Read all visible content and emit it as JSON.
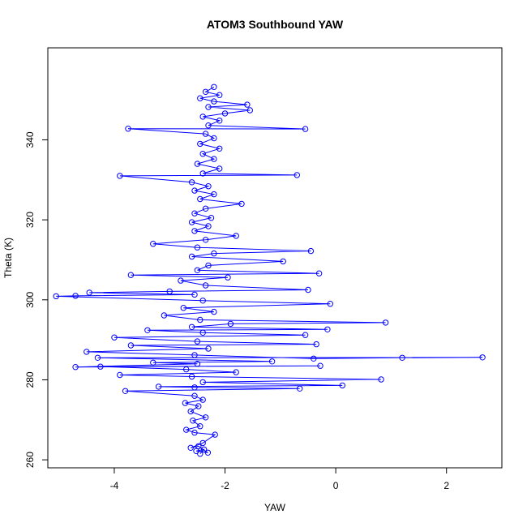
{
  "chart_data": {
    "type": "line",
    "title": "ATOM3 Southbound YAW",
    "xlabel": "YAW",
    "ylabel": "Theta (K)",
    "xlim": [
      -5.2,
      3.0
    ],
    "ylim": [
      258,
      363
    ],
    "x_ticks": [
      -4,
      -2,
      0,
      2
    ],
    "y_ticks": [
      260,
      280,
      300,
      320,
      340
    ],
    "x_tick_labels": [
      "-4",
      "-2",
      "0",
      "2"
    ],
    "y_tick_labels": [
      "260",
      "280",
      "300",
      "320",
      "340"
    ],
    "series_color": "#0000ff",
    "markers": "open-circle",
    "grid": false,
    "series": [
      {
        "values": [
          [
            -2.45,
            261.5
          ],
          [
            -2.38,
            262.6
          ],
          [
            -2.52,
            262.2
          ],
          [
            -2.31,
            261.8
          ],
          [
            -2.48,
            263.4
          ],
          [
            -2.62,
            263.0
          ],
          [
            -2.4,
            264.2
          ],
          [
            -2.18,
            266.3
          ],
          [
            -2.55,
            266.8
          ],
          [
            -2.7,
            267.5
          ],
          [
            -2.45,
            268.4
          ],
          [
            -2.58,
            269.8
          ],
          [
            -2.35,
            270.6
          ],
          [
            -2.62,
            272.1
          ],
          [
            -2.48,
            273.4
          ],
          [
            -2.72,
            274.2
          ],
          [
            -2.4,
            275.0
          ],
          [
            -2.55,
            276.0
          ],
          [
            -3.8,
            277.2
          ],
          [
            -0.65,
            277.8
          ],
          [
            -2.55,
            278.1
          ],
          [
            -3.2,
            278.3
          ],
          [
            0.12,
            278.6
          ],
          [
            -2.4,
            279.4
          ],
          [
            0.82,
            280.1
          ],
          [
            -2.6,
            280.8
          ],
          [
            -3.9,
            281.2
          ],
          [
            -1.8,
            281.9
          ],
          [
            -2.7,
            282.6
          ],
          [
            -4.25,
            283.3
          ],
          [
            -0.28,
            283.5
          ],
          [
            -4.7,
            283.2
          ],
          [
            -2.5,
            284.0
          ],
          [
            -3.3,
            284.3
          ],
          [
            -1.15,
            284.6
          ],
          [
            -4.3,
            285.5
          ],
          [
            2.65,
            285.6
          ],
          [
            1.2,
            285.5
          ],
          [
            -0.4,
            285.3
          ],
          [
            -2.55,
            286.2
          ],
          [
            -4.5,
            287.0
          ],
          [
            -2.3,
            287.8
          ],
          [
            -3.7,
            288.6
          ],
          [
            -0.35,
            288.9
          ],
          [
            -2.5,
            289.6
          ],
          [
            -4.0,
            290.6
          ],
          [
            -0.55,
            291.2
          ],
          [
            -2.4,
            291.8
          ],
          [
            -3.4,
            292.4
          ],
          [
            -0.15,
            292.6
          ],
          [
            -2.6,
            293.2
          ],
          [
            -1.9,
            294.0
          ],
          [
            0.9,
            294.3
          ],
          [
            -2.45,
            295.0
          ],
          [
            -3.1,
            296.1
          ],
          [
            -2.2,
            297.0
          ],
          [
            -2.75,
            298.0
          ],
          [
            -0.1,
            299.0
          ],
          [
            -2.4,
            299.8
          ],
          [
            -5.05,
            300.9
          ],
          [
            -4.7,
            301.0
          ],
          [
            -2.55,
            301.3
          ],
          [
            -4.45,
            301.8
          ],
          [
            -3.0,
            302.1
          ],
          [
            -0.5,
            302.5
          ],
          [
            -2.35,
            303.6
          ],
          [
            -2.8,
            304.8
          ],
          [
            -1.95,
            305.6
          ],
          [
            -3.7,
            306.2
          ],
          [
            -0.3,
            306.6
          ],
          [
            -2.5,
            307.4
          ],
          [
            -2.3,
            308.6
          ],
          [
            -0.95,
            309.6
          ],
          [
            -2.6,
            310.8
          ],
          [
            -2.2,
            311.6
          ],
          [
            -0.45,
            312.2
          ],
          [
            -2.5,
            313.1
          ],
          [
            -3.3,
            314.0
          ],
          [
            -2.35,
            315.0
          ],
          [
            -1.8,
            316.0
          ],
          [
            -2.55,
            317.2
          ],
          [
            -2.3,
            318.4
          ],
          [
            -2.6,
            319.4
          ],
          [
            -2.25,
            320.5
          ],
          [
            -2.55,
            321.6
          ],
          [
            -2.35,
            322.8
          ],
          [
            -1.7,
            324.0
          ],
          [
            -2.45,
            325.2
          ],
          [
            -2.2,
            326.4
          ],
          [
            -2.55,
            327.3
          ],
          [
            -2.3,
            328.4
          ],
          [
            -2.6,
            329.4
          ],
          [
            -3.9,
            331.0
          ],
          [
            -0.7,
            331.2
          ],
          [
            -2.4,
            331.6
          ],
          [
            -2.1,
            332.8
          ],
          [
            -2.5,
            334.0
          ],
          [
            -2.2,
            335.2
          ],
          [
            -2.4,
            336.5
          ],
          [
            -2.1,
            337.8
          ],
          [
            -2.45,
            339.0
          ],
          [
            -2.2,
            340.4
          ],
          [
            -2.35,
            341.5
          ],
          [
            -3.75,
            342.8
          ],
          [
            -0.55,
            342.7
          ],
          [
            -2.3,
            343.6
          ],
          [
            -2.1,
            344.8
          ],
          [
            -2.4,
            345.8
          ],
          [
            -2.0,
            346.6
          ],
          [
            -1.55,
            347.4
          ],
          [
            -2.3,
            348.2
          ],
          [
            -1.6,
            348.8
          ],
          [
            -2.2,
            349.6
          ],
          [
            -2.45,
            350.4
          ],
          [
            -2.1,
            351.2
          ],
          [
            -2.35,
            352.0
          ],
          [
            -2.2,
            353.2
          ]
        ]
      }
    ]
  }
}
